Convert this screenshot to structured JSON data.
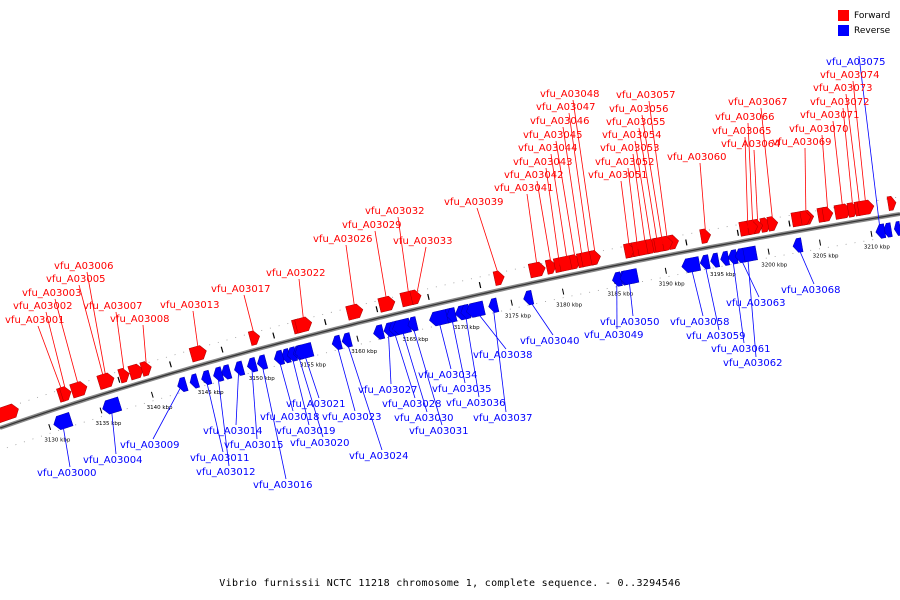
{
  "legend": {
    "forward_label": "Forward",
    "reverse_label": "Reverse",
    "forward_color": "#ff0000",
    "reverse_color": "#0000ff"
  },
  "caption": "Vibrio furnissii NCTC 11218 chromosome 1, complete sequence. - 0..3294546",
  "axis": {
    "ticks": [
      "3130 kbp",
      "3135 kbp",
      "3140 kbp",
      "3145 kbp",
      "3150 kbp",
      "3155 kbp",
      "3160 kbp",
      "3165 kbp",
      "3170 kbp",
      "3175 kbp",
      "3180 kbp",
      "3185 kbp",
      "3190 kbp",
      "3195 kbp",
      "3200 kbp",
      "3205 kbp",
      "3210 kbp"
    ]
  },
  "genes": [
    {
      "label": "vfu_A03000",
      "strand": "reverse"
    },
    {
      "label": "vfu_A03001",
      "strand": "forward"
    },
    {
      "label": "vfu_A03002",
      "strand": "forward"
    },
    {
      "label": "vfu_A03003",
      "strand": "forward"
    },
    {
      "label": "vfu_A03004",
      "strand": "reverse"
    },
    {
      "label": "vfu_A03005",
      "strand": "forward"
    },
    {
      "label": "vfu_A03006",
      "strand": "forward"
    },
    {
      "label": "vfu_A03007",
      "strand": "forward"
    },
    {
      "label": "vfu_A03008",
      "strand": "forward"
    },
    {
      "label": "vfu_A03009",
      "strand": "reverse"
    },
    {
      "label": "vfu_A03011",
      "strand": "reverse"
    },
    {
      "label": "vfu_A03012",
      "strand": "reverse"
    },
    {
      "label": "vfu_A03013",
      "strand": "forward"
    },
    {
      "label": "vfu_A03014",
      "strand": "reverse"
    },
    {
      "label": "vfu_A03015",
      "strand": "reverse"
    },
    {
      "label": "vfu_A03016",
      "strand": "reverse"
    },
    {
      "label": "vfu_A03017",
      "strand": "forward"
    },
    {
      "label": "vfu_A03018",
      "strand": "reverse"
    },
    {
      "label": "vfu_A03019",
      "strand": "reverse"
    },
    {
      "label": "vfu_A03020",
      "strand": "reverse"
    },
    {
      "label": "vfu_A03021",
      "strand": "reverse"
    },
    {
      "label": "vfu_A03022",
      "strand": "forward"
    },
    {
      "label": "vfu_A03023",
      "strand": "reverse"
    },
    {
      "label": "vfu_A03024",
      "strand": "reverse"
    },
    {
      "label": "vfu_A03026",
      "strand": "forward"
    },
    {
      "label": "vfu_A03027",
      "strand": "reverse"
    },
    {
      "label": "vfu_A03028",
      "strand": "reverse"
    },
    {
      "label": "vfu_A03029",
      "strand": "forward"
    },
    {
      "label": "vfu_A03030",
      "strand": "reverse"
    },
    {
      "label": "vfu_A03031",
      "strand": "reverse"
    },
    {
      "label": "vfu_A03032",
      "strand": "forward"
    },
    {
      "label": "vfu_A03033",
      "strand": "forward"
    },
    {
      "label": "vfu_A03034",
      "strand": "reverse"
    },
    {
      "label": "vfu_A03035",
      "strand": "reverse"
    },
    {
      "label": "vfu_A03036",
      "strand": "reverse"
    },
    {
      "label": "vfu_A03037",
      "strand": "reverse"
    },
    {
      "label": "vfu_A03038",
      "strand": "reverse"
    },
    {
      "label": "vfu_A03039",
      "strand": "forward"
    },
    {
      "label": "vfu_A03040",
      "strand": "reverse"
    },
    {
      "label": "vfu_A03041",
      "strand": "forward"
    },
    {
      "label": "vfu_A03042",
      "strand": "forward"
    },
    {
      "label": "vfu_A03043",
      "strand": "forward"
    },
    {
      "label": "vfu_A03044",
      "strand": "forward"
    },
    {
      "label": "vfu_A03045",
      "strand": "forward"
    },
    {
      "label": "vfu_A03046",
      "strand": "forward"
    },
    {
      "label": "vfu_A03047",
      "strand": "forward"
    },
    {
      "label": "vfu_A03048",
      "strand": "forward"
    },
    {
      "label": "vfu_A03049",
      "strand": "reverse"
    },
    {
      "label": "vfu_A03050",
      "strand": "reverse"
    },
    {
      "label": "vfu_A03051",
      "strand": "forward"
    },
    {
      "label": "vfu_A03052",
      "strand": "forward"
    },
    {
      "label": "vfu_A03053",
      "strand": "forward"
    },
    {
      "label": "vfu_A03054",
      "strand": "forward"
    },
    {
      "label": "vfu_A03055",
      "strand": "forward"
    },
    {
      "label": "vfu_A03056",
      "strand": "forward"
    },
    {
      "label": "vfu_A03057",
      "strand": "forward"
    },
    {
      "label": "vfu_A03058",
      "strand": "reverse"
    },
    {
      "label": "vfu_A03059",
      "strand": "reverse"
    },
    {
      "label": "vfu_A03060",
      "strand": "forward"
    },
    {
      "label": "vfu_A03061",
      "strand": "reverse"
    },
    {
      "label": "vfu_A03062",
      "strand": "reverse"
    },
    {
      "label": "vfu_A03063",
      "strand": "reverse"
    },
    {
      "label": "vfu_A03064",
      "strand": "forward"
    },
    {
      "label": "vfu_A03065",
      "strand": "forward"
    },
    {
      "label": "vfu_A03066",
      "strand": "forward"
    },
    {
      "label": "vfu_A03067",
      "strand": "forward"
    },
    {
      "label": "vfu_A03068",
      "strand": "reverse"
    },
    {
      "label": "vfu_A03069",
      "strand": "forward"
    },
    {
      "label": "vfu_A03070",
      "strand": "forward"
    },
    {
      "label": "vfu_A03071",
      "strand": "forward"
    },
    {
      "label": "vfu_A03072",
      "strand": "forward"
    },
    {
      "label": "vfu_A03073",
      "strand": "forward"
    },
    {
      "label": "vfu_A03074",
      "strand": "forward"
    },
    {
      "label": "vfu_A03075",
      "strand": "reverse"
    }
  ]
}
